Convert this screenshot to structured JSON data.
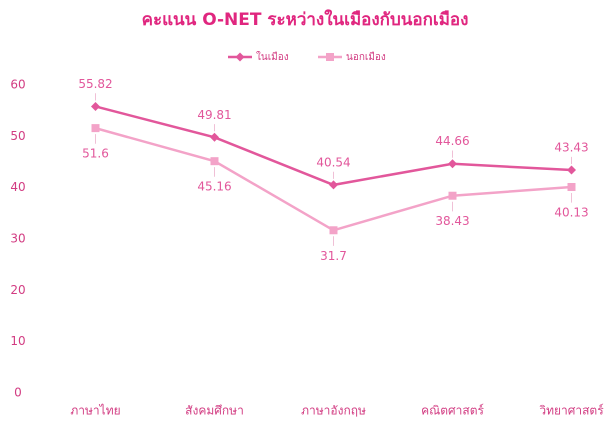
{
  "chart_data": {
    "type": "line",
    "title": "คะแนน O-NET ระหว่างในเมืองกับนอกเมือง",
    "categories": [
      "ภาษาไทย",
      "สังคมศึกษา",
      "ภาษาอังกฤษ",
      "คณิตศาสตร์",
      "วิทยาศาสตร์"
    ],
    "series": [
      {
        "name": "ในเมือง",
        "color": "#e2579b",
        "values": [
          55.82,
          49.81,
          40.54,
          44.66,
          43.43
        ]
      },
      {
        "name": "นอกเมือง",
        "color": "#f3a3c8",
        "values": [
          51.6,
          45.16,
          31.7,
          38.43,
          40.13
        ]
      }
    ],
    "ylim": [
      0,
      60
    ],
    "yticks": [
      0,
      10,
      20,
      30,
      40,
      50,
      60
    ],
    "grid": false
  }
}
